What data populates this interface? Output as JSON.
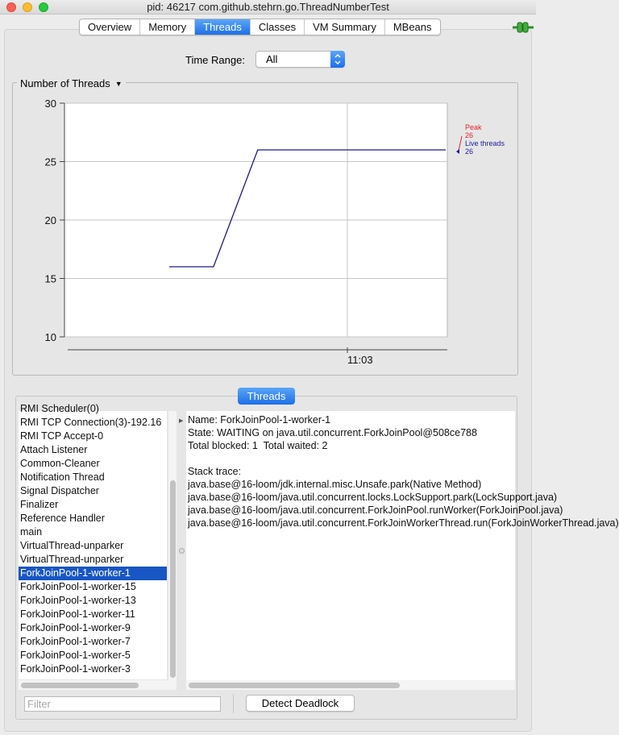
{
  "window": {
    "title": "pid: 46217 com.github.stehrn.go.ThreadNumberTest"
  },
  "tabs": [
    {
      "label": "Overview",
      "active": false
    },
    {
      "label": "Memory",
      "active": false
    },
    {
      "label": "Threads",
      "active": true
    },
    {
      "label": "Classes",
      "active": false
    },
    {
      "label": "VM Summary",
      "active": false
    },
    {
      "label": "MBeans",
      "active": false
    }
  ],
  "time_range": {
    "label": "Time Range:",
    "value": "All"
  },
  "chart_panel": {
    "title": "Number of Threads"
  },
  "chart_data": {
    "type": "line",
    "y_ticks": [
      "30",
      "25",
      "20",
      "15",
      "10"
    ],
    "ylim": [
      10,
      30
    ],
    "x_tick_label": "11:03",
    "grid": true,
    "series": [
      {
        "name": "Live threads",
        "color": "#1a1a8c",
        "points": [
          [
            0,
            16
          ],
          [
            0.16,
            16
          ],
          [
            0.32,
            26
          ],
          [
            1,
            26
          ]
        ]
      }
    ],
    "legend": {
      "peak_label": "Peak",
      "peak_value": "26",
      "live_label": "Live threads",
      "live_value": "26",
      "peak_color": "#e0242b",
      "live_color": "#1a1aa6"
    }
  },
  "threads_section": {
    "button_label": "Threads",
    "list": [
      {
        "name": "RMI Scheduler(0)",
        "selected": false
      },
      {
        "name": "RMI TCP Connection(3)-192.16",
        "selected": false
      },
      {
        "name": "RMI TCP Accept-0",
        "selected": false
      },
      {
        "name": "Attach Listener",
        "selected": false
      },
      {
        "name": "Common-Cleaner",
        "selected": false
      },
      {
        "name": "Notification Thread",
        "selected": false
      },
      {
        "name": "Signal Dispatcher",
        "selected": false
      },
      {
        "name": "Finalizer",
        "selected": false
      },
      {
        "name": "Reference Handler",
        "selected": false
      },
      {
        "name": "main",
        "selected": false
      },
      {
        "name": "VirtualThread-unparker",
        "selected": false
      },
      {
        "name": "VirtualThread-unparker",
        "selected": false
      },
      {
        "name": "ForkJoinPool-1-worker-1",
        "selected": true
      },
      {
        "name": "ForkJoinPool-1-worker-15",
        "selected": false
      },
      {
        "name": "ForkJoinPool-1-worker-13",
        "selected": false
      },
      {
        "name": "ForkJoinPool-1-worker-11",
        "selected": false
      },
      {
        "name": "ForkJoinPool-1-worker-9",
        "selected": false
      },
      {
        "name": "ForkJoinPool-1-worker-7",
        "selected": false
      },
      {
        "name": "ForkJoinPool-1-worker-5",
        "selected": false
      },
      {
        "name": "ForkJoinPool-1-worker-3",
        "selected": false
      }
    ],
    "detail_lines": [
      "Name: ForkJoinPool-1-worker-1",
      "State: WAITING on java.util.concurrent.ForkJoinPool@508ce788",
      "Total blocked: 1  Total waited: 2",
      "",
      "Stack trace:",
      "java.base@16-loom/jdk.internal.misc.Unsafe.park(Native Method)",
      "java.base@16-loom/java.util.concurrent.locks.LockSupport.park(LockSupport.java)",
      "java.base@16-loom/java.util.concurrent.ForkJoinPool.runWorker(ForkJoinPool.java)",
      "java.base@16-loom/java.util.concurrent.ForkJoinWorkerThread.run(ForkJoinWorkerThread.java)"
    ],
    "filter_placeholder": "Filter",
    "deadlock_button": "Detect Deadlock"
  }
}
